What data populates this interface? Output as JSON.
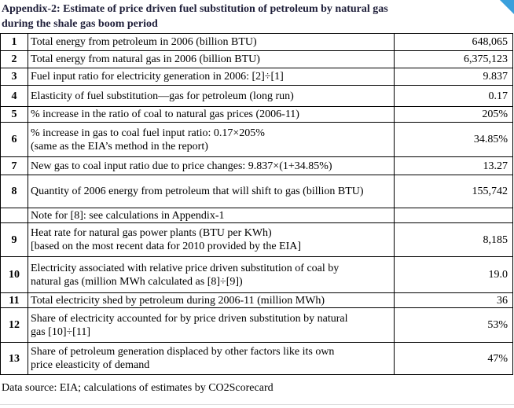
{
  "title": [
    "Appendix-2: Estimate of price driven fuel substitution of petroleum by natural gas",
    "during the shale gas boom period"
  ],
  "table": {
    "rows": [
      {
        "num": "1",
        "label": [
          "Total energy from petroleum in 2006 (billion BTU)"
        ],
        "value": "648,065"
      },
      {
        "num": "2",
        "label": [
          "Total energy from natural gas in 2006 (billion BTU)"
        ],
        "value": "6,375,123"
      },
      {
        "num": "3",
        "label": [
          "Fuel input ratio for electricity generation in 2006: [2]÷[1]"
        ],
        "value": "9.837"
      },
      {
        "num": "4",
        "label": [
          "Elasticity of fuel substitution—gas for petroleum (long run)"
        ],
        "value": "0.17"
      },
      {
        "num": "5",
        "label": [
          "% increase in the ratio of coal to natural gas prices (2006-11)"
        ],
        "value": "205%"
      },
      {
        "num": "6",
        "label": [
          "% increase in gas to coal fuel input ratio: 0.17×205%",
          "(same as the EIA’s method in the report)"
        ],
        "value": "34.85%"
      },
      {
        "num": "7",
        "label": [
          "New gas to coal input ratio due to price changes: 9.837×(1+34.85%)"
        ],
        "value": "13.27"
      },
      {
        "num": "8",
        "label": [
          "Quantity of 2006 energy from petroleum that will shift to gas (billion BTU)"
        ],
        "value": "155,742"
      },
      {
        "label": [
          "Note for [8]: see calculations in Appendix-1"
        ]
      },
      {
        "num": "9",
        "label": [
          "Heat rate for natural gas power plants (BTU per KWh)",
          "[based on the most recent data for 2010 provided by the EIA]"
        ],
        "value": "8,185"
      },
      {
        "num": "10",
        "label": [
          "Electricity associated with relative price driven substitution of coal by",
          "natural gas (million MWh calculated as [8]÷[9])"
        ],
        "value": "19.0"
      },
      {
        "num": "11",
        "label": [
          "Total electricity shed by petroleum during 2006-11 (million MWh)"
        ],
        "value": "36"
      },
      {
        "num": "12",
        "label": [
          "Share of electricity accounted for by price driven substitution by natural",
          "gas [10]÷[11]"
        ],
        "value": "53%"
      },
      {
        "num": "13",
        "label": [
          "Share of petroleum generation displaced by other factors like its own",
          "price eleasticity of demand"
        ],
        "value": "47%"
      }
    ]
  },
  "source": "Data source: EIA; calculations of estimates by CO2Scorecard"
}
